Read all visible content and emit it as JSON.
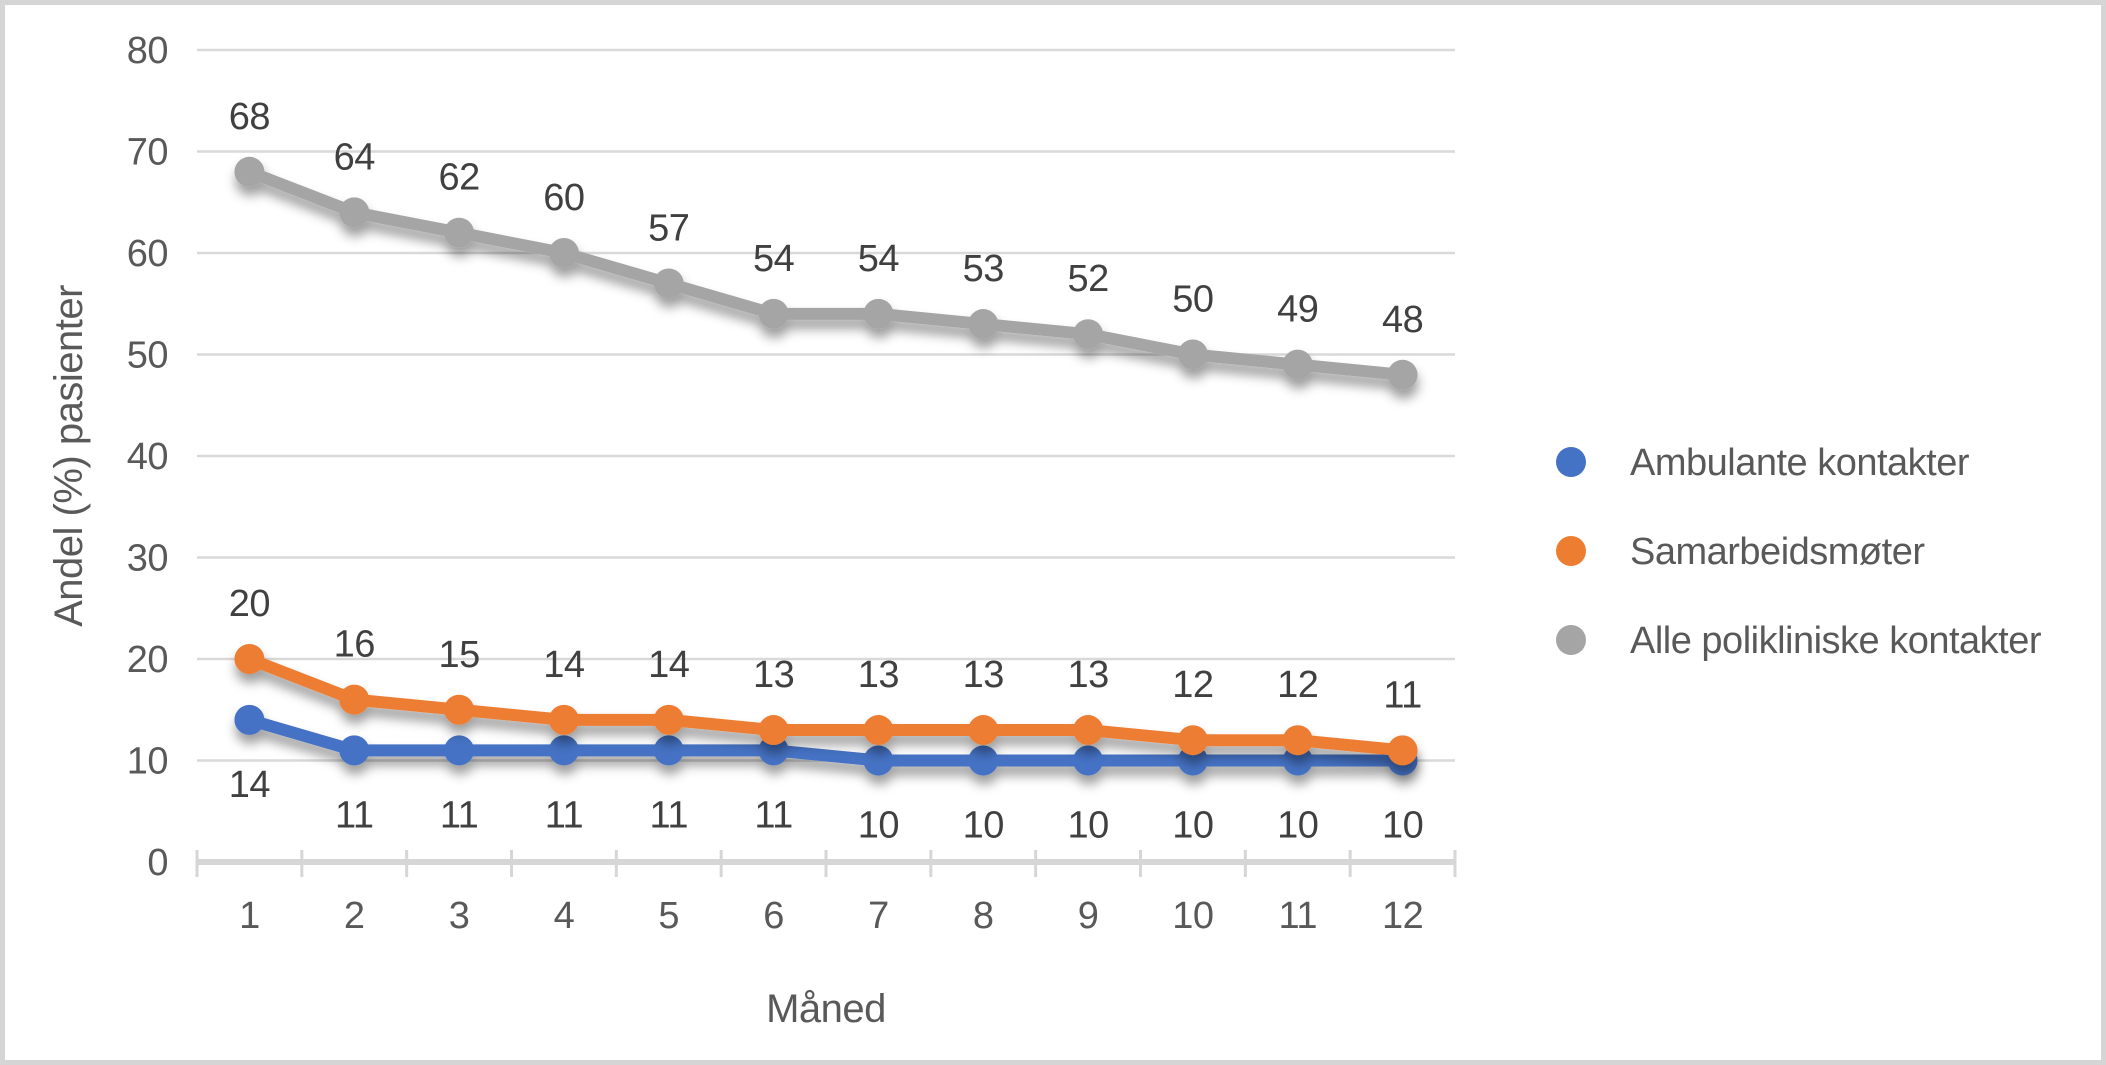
{
  "chart_data": {
    "type": "line",
    "title": "",
    "xlabel": "Måned",
    "ylabel": "Andel (%) pasienter",
    "categories": [
      "1",
      "2",
      "3",
      "4",
      "5",
      "6",
      "7",
      "8",
      "9",
      "10",
      "11",
      "12"
    ],
    "y_ticks": [
      0,
      10,
      20,
      30,
      40,
      50,
      60,
      70,
      80
    ],
    "ylim": [
      0,
      80
    ],
    "grid": true,
    "legend_position": "right",
    "series": [
      {
        "name": "Ambulante kontakter",
        "color": "#4472C4",
        "label_position": "below",
        "values": [
          14,
          11,
          11,
          11,
          11,
          11,
          10,
          10,
          10,
          10,
          10,
          10
        ]
      },
      {
        "name": "Samarbeidsmøter",
        "color": "#ED7D31",
        "label_position": "above",
        "values": [
          20,
          16,
          15,
          14,
          14,
          13,
          13,
          13,
          13,
          12,
          12,
          11
        ]
      },
      {
        "name": "Alle polikliniske kontakter",
        "color": "#A5A5A5",
        "label_position": "above",
        "values": [
          68,
          64,
          62,
          60,
          57,
          54,
          54,
          53,
          52,
          50,
          49,
          48
        ]
      }
    ]
  },
  "colors": {
    "background": "#FFFFFF",
    "frame_border": "#D5D5D5",
    "gridline": "#D9D9D9",
    "axis_line": "#D6D6D6",
    "tick_label": "#595959",
    "data_label": "#404040",
    "axis_title": "#595959",
    "legend_text": "#595959"
  }
}
